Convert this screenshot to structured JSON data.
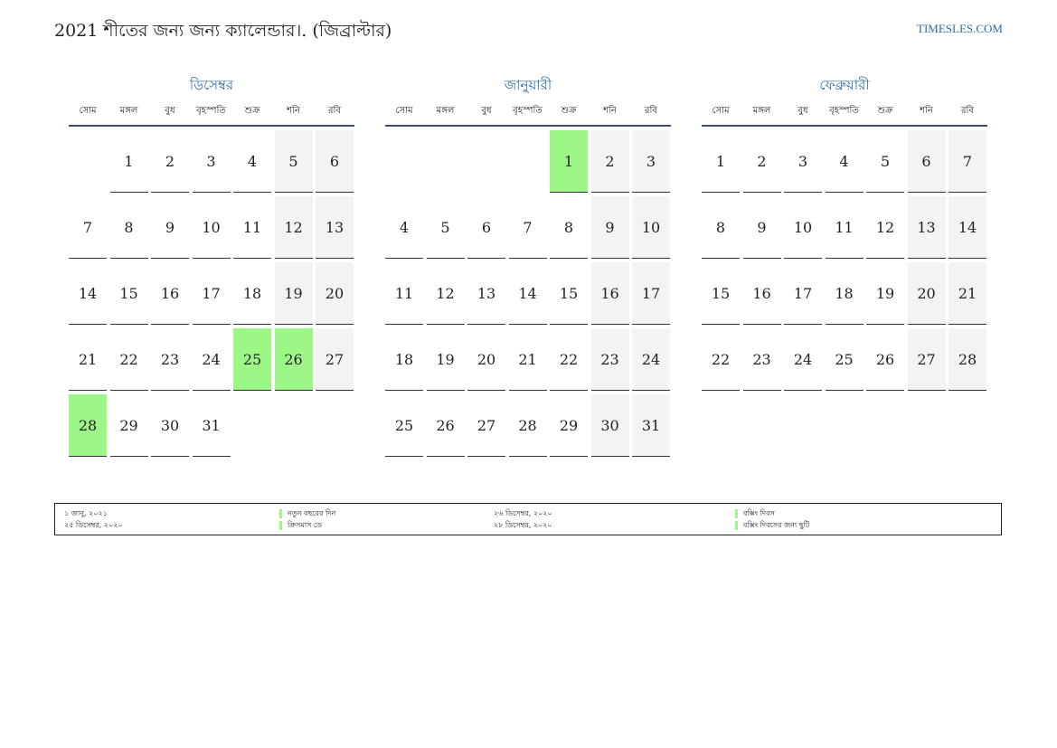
{
  "title": "2021 শীতের জন্য জন্য ক্যালেন্ডার।. (জিব্রাল্টার)",
  "site": "TIMESLES.COM",
  "colors": {
    "accent": "#2b6ca3",
    "holiday": "#9cf786",
    "weekend": "#f3f3f3"
  },
  "weekdays": [
    "সোম",
    "মঙ্গল",
    "বুধ",
    "বৃহস্পতি",
    "শুক্র",
    "শনি",
    "রবি"
  ],
  "months": [
    {
      "name": "ডিসেম্বর",
      "offset": 1,
      "days": [
        "1",
        "2",
        "3",
        "4",
        "5",
        "6",
        "7",
        "8",
        "9",
        "10",
        "11",
        "12",
        "13",
        "14",
        "15",
        "16",
        "17",
        "18",
        "19",
        "20",
        "21",
        "22",
        "23",
        "24",
        "25",
        "26",
        "27",
        "28",
        "29",
        "30",
        "31"
      ],
      "holidays": [
        25,
        26,
        28
      ]
    },
    {
      "name": "জানুয়ারী",
      "offset": 4,
      "days": [
        "1",
        "2",
        "3",
        "4",
        "5",
        "6",
        "7",
        "8",
        "9",
        "10",
        "11",
        "12",
        "13",
        "14",
        "15",
        "16",
        "17",
        "18",
        "19",
        "20",
        "21",
        "22",
        "23",
        "24",
        "25",
        "26",
        "27",
        "28",
        "29",
        "30",
        "31"
      ],
      "holidays": [
        1
      ]
    },
    {
      "name": "ফেব্রুয়ারী",
      "offset": 0,
      "days": [
        "1",
        "2",
        "3",
        "4",
        "5",
        "6",
        "7",
        "8",
        "9",
        "10",
        "11",
        "12",
        "13",
        "14",
        "15",
        "16",
        "17",
        "18",
        "19",
        "20",
        "21",
        "22",
        "23",
        "24",
        "25",
        "26",
        "27",
        "28"
      ],
      "holidays": []
    }
  ],
  "legend": {
    "row1": {
      "date1": "১ জানু, ২০২১",
      "name1": "নতুন বছরের দিন",
      "date2": "২৬ ডিসেম্বর, ২০২০",
      "name2": "বক্সিং দিবস"
    },
    "row2": {
      "date1": "২৫ ডিসেম্বর, ২০২০",
      "name1": "ক্রিসমাস ডে",
      "date2": "২৮ ডিসেম্বর, ২০২০",
      "name2": "বক্সিং দিবসের জন্য ছুটি"
    }
  }
}
